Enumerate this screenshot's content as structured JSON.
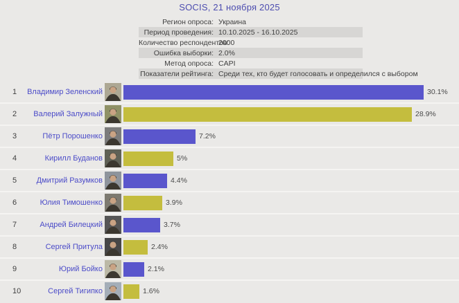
{
  "title": "SOCIS, 21 ноября 2025",
  "meta": {
    "rows": [
      {
        "label": "Регион опроса:",
        "value": "Украина",
        "band": false
      },
      {
        "label": "Период проведения:",
        "value": "10.10.2025 - 16.10.2025",
        "band": true
      },
      {
        "label": "Количество респондентов:",
        "value": "2000",
        "band": false
      },
      {
        "label": "Ошибка выборки:",
        "value": "2.0%",
        "band": true
      },
      {
        "label": "Метод опроса:",
        "value": "CAPI",
        "band": false
      },
      {
        "label": "Показатели рейтинга:",
        "value": "Среди тех, кто будет голосовать и определился с выбором",
        "band": true
      }
    ]
  },
  "chart_data": {
    "type": "bar",
    "orientation": "horizontal",
    "title": "SOCIS, 21 ноября 2025",
    "categories": [
      "Владимир Зеленский",
      "Валерий Залужный",
      "Пётр Порошенко",
      "Кирилл Буданов",
      "Дмитрий Разумков",
      "Юлия Тимошенко",
      "Андрей Билецкий",
      "Сергей Притула",
      "Юрий Бойко",
      "Сергей Тигипко"
    ],
    "ranks": [
      1,
      2,
      3,
      4,
      5,
      6,
      7,
      8,
      9,
      10
    ],
    "values": [
      30.1,
      28.9,
      7.2,
      5,
      4.4,
      3.9,
      3.7,
      2.4,
      2.1,
      1.6
    ],
    "value_labels": [
      "30.1%",
      "28.9%",
      "7.2%",
      "5%",
      "4.4%",
      "3.9%",
      "3.7%",
      "2.4%",
      "2.1%",
      "1.6%"
    ],
    "xlim": [
      0,
      31
    ],
    "legend": "none",
    "grid": "off",
    "bar_color_pattern": [
      "#5a56cc",
      "#c4bd3e"
    ]
  },
  "colors": {
    "page_bg": "#eae9e7",
    "meta_band_bg": "#d7d6d4",
    "bar_blue": "#5a56cc",
    "bar_yellow": "#c4bd3e",
    "name_text": "#4b4bc8",
    "title_text": "#4c4caf",
    "dark_text": "#3f3f3f",
    "row_separator": "#f5f4f2"
  },
  "photo_tones": [
    "#ada894",
    "#8f9166",
    "#7c7c7c",
    "#5f6156",
    "#8e949c",
    "#7d7a70",
    "#565656",
    "#474747",
    "#bcb9a6",
    "#a4aeb8"
  ]
}
